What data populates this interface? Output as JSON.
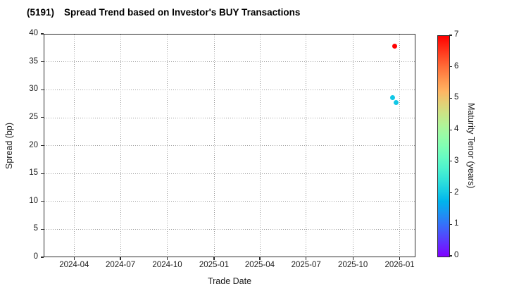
{
  "title": {
    "code": "(5191)",
    "text": "Spread Trend based on Investor's BUY Transactions"
  },
  "chart_data": {
    "type": "scatter",
    "title": "(5191)  Spread Trend based on Investor's BUY Transactions",
    "xlabel": "Trade Date",
    "ylabel": "Spread (bp)",
    "grid": "dotted",
    "x_axis": {
      "range": [
        "2024-02-01",
        "2026-02-01"
      ],
      "ticks": [
        {
          "value": "2024-04-01",
          "label": "2024-04"
        },
        {
          "value": "2024-07-01",
          "label": "2024-07"
        },
        {
          "value": "2024-10-01",
          "label": "2024-10"
        },
        {
          "value": "2025-01-01",
          "label": "2025-01"
        },
        {
          "value": "2025-04-01",
          "label": "2025-04"
        },
        {
          "value": "2025-07-01",
          "label": "2025-07"
        },
        {
          "value": "2025-10-01",
          "label": "2025-10"
        },
        {
          "value": "2026-01-01",
          "label": "2026-01"
        }
      ]
    },
    "y_axis": {
      "range": [
        0,
        40
      ],
      "ticks": [
        0,
        5,
        10,
        15,
        20,
        25,
        30,
        35,
        40
      ]
    },
    "colorbar": {
      "label": "Maturity Tenor (years)",
      "range": [
        0,
        7
      ],
      "ticks": [
        0,
        1,
        2,
        3,
        4,
        5,
        6,
        7
      ],
      "colormap": "rainbow"
    },
    "points": [
      {
        "trade_date": "2025-12-22",
        "spread_bp": 37.7,
        "maturity_tenor_years": 7.0
      },
      {
        "trade_date": "2025-12-19",
        "spread_bp": 28.6,
        "maturity_tenor_years": 2.0
      },
      {
        "trade_date": "2025-12-25",
        "spread_bp": 27.6,
        "maturity_tenor_years": 2.0
      }
    ]
  },
  "colors": {
    "grid": "#9d9d9d",
    "spine": "#2b2b2b",
    "text": "#1c1c1c",
    "background": "#ffffff"
  }
}
